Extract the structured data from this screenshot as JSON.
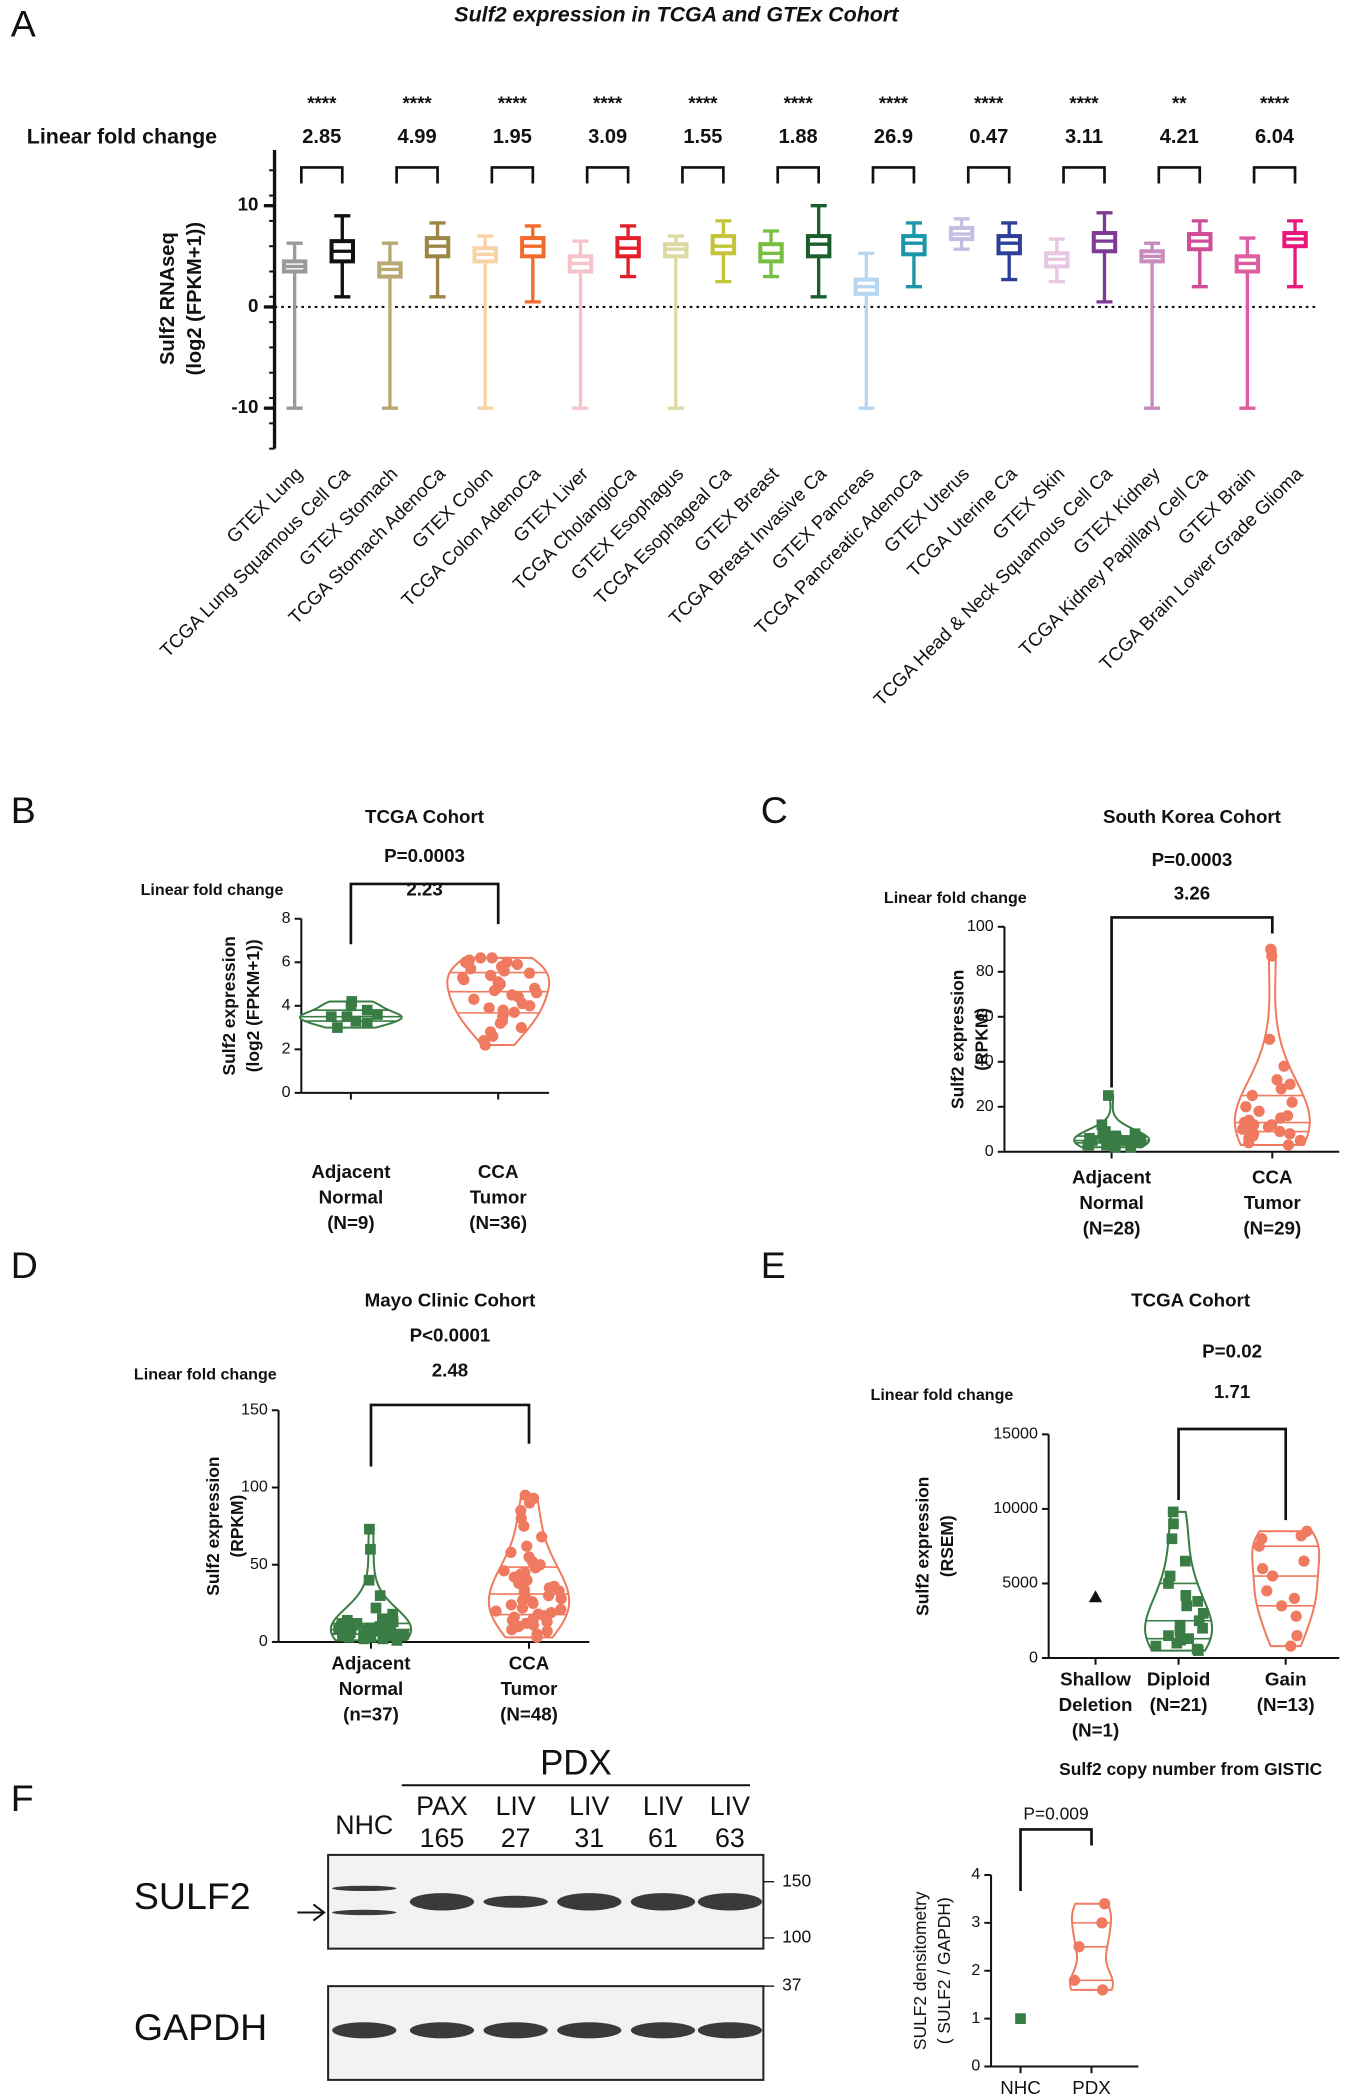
{
  "panel_labels": [
    "A",
    "B",
    "C",
    "D",
    "E",
    "F"
  ],
  "chart_data": [
    {
      "type": "box",
      "title": "Sulf2 expression in TCGA and GTEx Cohort",
      "ylabel": [
        "Sulf2 RNAseq",
        "(log2 (FPKM+1))"
      ],
      "ylim": [
        -14,
        15.5
      ],
      "yticks": [
        -10,
        0,
        10
      ],
      "hline": 0,
      "categories": [
        "GTEX Lung",
        "TCGA Lung Squamous Cell Ca",
        "GTEX Stomach",
        "TCGA Stomach AdenoCa",
        "GTEX Colon",
        "TCGA Colon AdenoCa",
        "GTEX Liver",
        "TCGA CholangioCa",
        "GTEX Esophagus",
        "TCGA Esophageal Ca",
        "GTEX Breast",
        "TCGA Breast Invasive Ca",
        "GTEX Pancreas",
        "TCGA Pancreatic AdenoCa",
        "GTEX Uterus",
        "TCGA Uterine Ca",
        "GTEX Skin",
        "TCGA Head & Neck Squamous Cell Ca",
        "GTEX Kidney",
        "TCGA Kidney Papillary Cell Ca",
        "GTEX Brain",
        "TCGA Brain Lower Grade Glioma"
      ],
      "colors": [
        "#9a9a9a",
        "#111111",
        "#b8a972",
        "#9c8646",
        "#f9d2a6",
        "#f26b2a",
        "#f6c3cb",
        "#e3202a",
        "#dcd9a3",
        "#c4c43a",
        "#78bf44",
        "#1b5e2e",
        "#b7d6f0",
        "#1a97a8",
        "#c4bfe2",
        "#2e3f99",
        "#e8c7e2",
        "#7d3b96",
        "#c78bbd",
        "#cf4c96",
        "#e05ca0",
        "#e8197a"
      ],
      "boxes": [
        {
          "min": -10,
          "q1": 3.5,
          "median": 4,
          "q3": 4.5,
          "max": 6.3
        },
        {
          "min": 1,
          "q1": 4.5,
          "median": 5.5,
          "q3": 6.5,
          "max": 9
        },
        {
          "min": -10,
          "q1": 3,
          "median": 3.7,
          "q3": 4.3,
          "max": 6.3
        },
        {
          "min": 1,
          "q1": 5,
          "median": 6,
          "q3": 6.8,
          "max": 8.3
        },
        {
          "min": -10,
          "q1": 4.5,
          "median": 5.2,
          "q3": 5.8,
          "max": 7
        },
        {
          "min": 0.5,
          "q1": 5,
          "median": 6,
          "q3": 6.8,
          "max": 8
        },
        {
          "min": -10,
          "q1": 3.5,
          "median": 4.3,
          "q3": 5,
          "max": 6.5
        },
        {
          "min": 3,
          "q1": 5,
          "median": 5.8,
          "q3": 6.8,
          "max": 8
        },
        {
          "min": -10,
          "q1": 5,
          "median": 5.7,
          "q3": 6.2,
          "max": 7
        },
        {
          "min": 2.5,
          "q1": 5.3,
          "median": 6,
          "q3": 7,
          "max": 8.5
        },
        {
          "min": 3,
          "q1": 4.5,
          "median": 5.3,
          "q3": 6.2,
          "max": 7.5
        },
        {
          "min": 1,
          "q1": 5,
          "median": 6.2,
          "q3": 7,
          "max": 10
        },
        {
          "min": -10,
          "q1": 1.3,
          "median": 2,
          "q3": 2.7,
          "max": 5.3
        },
        {
          "min": 2,
          "q1": 5.2,
          "median": 6.3,
          "q3": 7,
          "max": 8.3
        },
        {
          "min": 5.7,
          "q1": 6.7,
          "median": 7.2,
          "q3": 7.8,
          "max": 8.7
        },
        {
          "min": 2.7,
          "q1": 5.3,
          "median": 6.3,
          "q3": 7,
          "max": 8.3
        },
        {
          "min": 2.5,
          "q1": 4,
          "median": 4.7,
          "q3": 5.3,
          "max": 6.7
        },
        {
          "min": 0.5,
          "q1": 5.5,
          "median": 6.5,
          "q3": 7.3,
          "max": 9.3
        },
        {
          "min": -10,
          "q1": 4.5,
          "median": 5,
          "q3": 5.5,
          "max": 6.3
        },
        {
          "min": 2,
          "q1": 5.7,
          "median": 6.5,
          "q3": 7.2,
          "max": 8.5
        },
        {
          "min": -10,
          "q1": 3.5,
          "median": 4.3,
          "q3": 5,
          "max": 6.8
        },
        {
          "min": 2,
          "q1": 6,
          "median": 6.7,
          "q3": 7.3,
          "max": 8.5
        }
      ],
      "annotation_label": "Linear fold change",
      "comparisons": [
        {
          "stars": "****",
          "fold_change": 2.85
        },
        {
          "stars": "****",
          "fold_change": 4.99
        },
        {
          "stars": "****",
          "fold_change": 1.95
        },
        {
          "stars": "****",
          "fold_change": 3.09
        },
        {
          "stars": "****",
          "fold_change": 1.55
        },
        {
          "stars": "****",
          "fold_change": 1.88
        },
        {
          "stars": "****",
          "fold_change": 26.9
        },
        {
          "stars": "****",
          "fold_change": 0.47
        },
        {
          "stars": "****",
          "fold_change": 3.11
        },
        {
          "stars": "**",
          "fold_change": 4.21
        },
        {
          "stars": "****",
          "fold_change": 6.04
        }
      ]
    },
    {
      "type": "violin",
      "title": "TCGA Cohort",
      "p_value": "P=0.0003",
      "fold_label": "Linear fold change",
      "fold_change": 2.23,
      "ylabel": [
        "Sulf2 expression",
        "(log2 (FPKM+1))"
      ],
      "ylim": [
        0,
        8
      ],
      "yticks": [
        0,
        2,
        4,
        6,
        8
      ],
      "bracket": [
        0,
        1
      ],
      "categories": [
        [
          "Adjacent",
          "Normal",
          "(N=9)"
        ],
        [
          "CCA",
          "Tumor",
          "(N=36)"
        ]
      ],
      "series": [
        {
          "color": "#3a7d44",
          "marker": "square",
          "values": [
            3.0,
            3.2,
            3.3,
            3.5,
            3.5,
            3.6,
            3.8,
            4.0,
            4.2
          ]
        },
        {
          "color": "#f07a5f",
          "marker": "circle",
          "values": [
            2.2,
            2.4,
            2.6,
            2.8,
            3.0,
            3.2,
            3.3,
            3.5,
            3.6,
            3.8,
            3.9,
            4.0,
            4.1,
            4.3,
            4.4,
            4.5,
            4.6,
            4.7,
            4.8,
            4.9,
            5.0,
            5.1,
            5.2,
            5.3,
            5.4,
            5.5,
            5.6,
            5.7,
            5.8,
            5.9,
            6.0,
            6.0,
            6.1,
            6.2,
            6.2,
            3.7
          ]
        }
      ]
    },
    {
      "type": "violin",
      "title": "South Korea Cohort",
      "p_value": "P=0.0003",
      "fold_label": "Linear fold change",
      "fold_change": 3.26,
      "ylabel": [
        "Sulf2 expression",
        "(RPKM)"
      ],
      "ylim": [
        0,
        100
      ],
      "yticks": [
        0,
        20,
        40,
        60,
        80,
        100
      ],
      "bracket": [
        0,
        1
      ],
      "categories": [
        [
          "Adjacent",
          "Normal",
          "(N=28)"
        ],
        [
          "CCA",
          "Tumor",
          "(N=29)"
        ]
      ],
      "series": [
        {
          "color": "#3a7d44",
          "marker": "square",
          "values": [
            25,
            12,
            9,
            8,
            8,
            7,
            7,
            7,
            6,
            6,
            6,
            6,
            5,
            5,
            5,
            5,
            5,
            4,
            4,
            4,
            4,
            3,
            3,
            3,
            3,
            2,
            2,
            6
          ]
        },
        {
          "color": "#f07a5f",
          "marker": "circle",
          "values": [
            90,
            87,
            50,
            38,
            32,
            30,
            28,
            25,
            22,
            20,
            18,
            16,
            15,
            14,
            13,
            12,
            12,
            11,
            10,
            10,
            9,
            9,
            8,
            8,
            7,
            6,
            5,
            4,
            3
          ]
        }
      ]
    },
    {
      "type": "violin",
      "title": "Mayo Clinic Cohort",
      "p_value": "P<0.0001",
      "fold_label": "Linear fold change",
      "fold_change": 2.48,
      "ylabel": [
        "Sulf2 expression",
        "(RPKM)"
      ],
      "ylim": [
        0,
        150
      ],
      "yticks": [
        0,
        50,
        100,
        150
      ],
      "bracket": [
        0,
        1
      ],
      "categories": [
        [
          "Adjacent",
          "Normal",
          "(n=37)"
        ],
        [
          "CCA",
          "Tumor",
          "(N=48)"
        ]
      ],
      "series": [
        {
          "color": "#3a7d44",
          "marker": "square",
          "values": [
            73,
            60,
            40,
            30,
            22,
            18,
            15,
            14,
            13,
            12,
            12,
            11,
            10,
            10,
            10,
            9,
            9,
            8,
            8,
            8,
            7,
            7,
            7,
            6,
            6,
            6,
            5,
            5,
            5,
            4,
            4,
            4,
            3,
            3,
            2,
            2,
            1
          ]
        },
        {
          "color": "#f07a5f",
          "marker": "circle",
          "values": [
            95,
            93,
            90,
            85,
            80,
            75,
            68,
            62,
            58,
            55,
            52,
            50,
            48,
            46,
            45,
            44,
            42,
            40,
            38,
            36,
            35,
            34,
            33,
            32,
            30,
            29,
            28,
            27,
            26,
            25,
            24,
            22,
            21,
            20,
            19,
            18,
            17,
            16,
            15,
            14,
            13,
            12,
            11,
            10,
            8,
            7,
            5,
            3
          ]
        }
      ]
    },
    {
      "type": "violin",
      "title": "TCGA Cohort",
      "p_value": "P=0.02",
      "fold_label": "Linear fold change",
      "fold_change": 1.71,
      "ylabel": [
        "Sulf2 expression",
        "(RSEM)"
      ],
      "xlabel": "Sulf2 copy number from GISTIC",
      "ylim": [
        0,
        15000
      ],
      "yticks": [
        0,
        5000,
        10000,
        15000
      ],
      "bracket": [
        1,
        2
      ],
      "categories": [
        [
          "Shallow",
          "Deletion",
          "(N=1)"
        ],
        [
          "Diploid",
          "(N=21)"
        ],
        [
          "Gain",
          "(N=13)"
        ]
      ],
      "series": [
        {
          "color": "#111111",
          "marker": "triangle",
          "values": [
            4100
          ]
        },
        {
          "color": "#3a7d44",
          "marker": "square",
          "values": [
            9800,
            9000,
            8000,
            6500,
            5500,
            5000,
            4200,
            3800,
            3500,
            3000,
            2500,
            2200,
            2000,
            1800,
            1500,
            1300,
            1200,
            1000,
            800,
            600,
            500
          ]
        },
        {
          "color": "#f07a5f",
          "marker": "circle",
          "values": [
            8500,
            8200,
            8000,
            7500,
            6500,
            6000,
            5500,
            4500,
            4000,
            3500,
            2800,
            1500,
            800
          ]
        }
      ]
    },
    {
      "type": "violin",
      "p_value": "P=0.009",
      "ylabel": [
        "SULF2 densitometry",
        "( SULF2 / GAPDH)"
      ],
      "ylim": [
        0,
        4
      ],
      "yticks": [
        0,
        1,
        2,
        3,
        4
      ],
      "bracket": [
        0,
        1
      ],
      "categories": [
        [
          "NHC"
        ],
        [
          "PDX"
        ]
      ],
      "series": [
        {
          "color": "#3a7d44",
          "marker": "square",
          "values": [
            1
          ]
        },
        {
          "color": "#f07a5f",
          "marker": "circle",
          "values": [
            3.4,
            3.0,
            2.5,
            1.8,
            1.6
          ]
        }
      ]
    }
  ],
  "blot": {
    "group": "PDX",
    "lanes": [
      [
        "NHC"
      ],
      [
        "PAX",
        "165"
      ],
      [
        "LIV",
        "27"
      ],
      [
        "LIV",
        "31"
      ],
      [
        "LIV",
        "61"
      ],
      [
        "LIV",
        "63"
      ]
    ],
    "rows": [
      {
        "label": "SULF2",
        "markers": [
          150,
          100
        ]
      },
      {
        "label": "GAPDH",
        "markers": [
          37
        ]
      }
    ]
  }
}
